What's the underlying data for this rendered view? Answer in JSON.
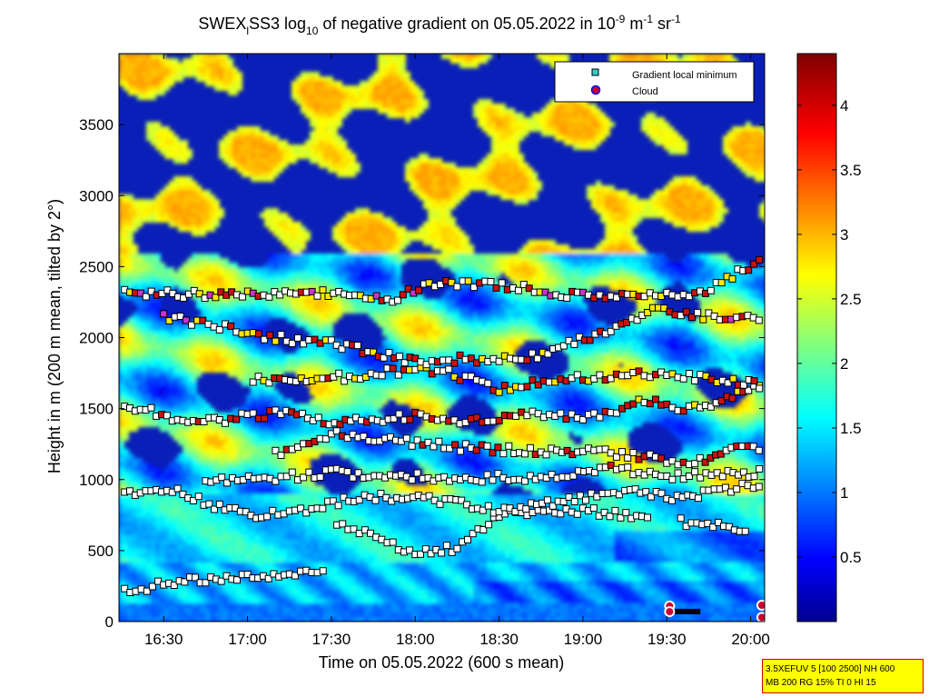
{
  "chart_data": {
    "type": "heatmap",
    "title": {
      "part1": "SWEX",
      "sub1": "l",
      "part2": "SS3 log",
      "sub2": "10",
      "part3": " of negative gradient on 05.05.2022 in 10",
      "sup1": "-9",
      "part4": " m",
      "sup2": "-1",
      "part5": " sr",
      "sup3": "-1"
    },
    "xlabel": "Time on 05.05.2022 (600 s mean)",
    "ylabel": "Height in m (200 m mean, tilted by 2°)",
    "x_ticks": [
      "16:30",
      "17:00",
      "17:30",
      "18:00",
      "18:30",
      "19:00",
      "19:30",
      "20:00"
    ],
    "x_tick_minutes": [
      990,
      1020,
      1050,
      1080,
      1110,
      1140,
      1170,
      1200
    ],
    "xlim_minutes": [
      974,
      1205
    ],
    "y_ticks": [
      0,
      500,
      1000,
      1500,
      2000,
      2500,
      3000,
      3500
    ],
    "ylim": [
      0,
      4000
    ],
    "colorbar": {
      "ticks": [
        "0.5",
        "1",
        "1.5",
        "2",
        "2.5",
        "3",
        "3.5",
        "4"
      ],
      "tick_values": [
        0.5,
        1,
        1.5,
        2,
        2.5,
        3,
        3.5,
        4
      ],
      "range": [
        0,
        4.4
      ],
      "colormap": "jet"
    },
    "legend": {
      "placement": "top-right",
      "entries": [
        {
          "label": "Gradient local minimum",
          "marker": "square",
          "color": "#33cccc"
        },
        {
          "label": "Cloud",
          "marker": "circle",
          "color": "#cc0033",
          "edge": "#0000ff"
        }
      ]
    },
    "layers_m": [
      {
        "name": "surface",
        "points": [
          [
            976,
            220
          ],
          [
            990,
            260
          ],
          [
            1005,
            300
          ],
          [
            1020,
            310
          ],
          [
            1035,
            330
          ],
          [
            1049,
            370
          ]
        ]
      },
      {
        "name": "low-a",
        "points": [
          [
            1052,
            700
          ],
          [
            1080,
            480
          ],
          [
            1095,
            520
          ],
          [
            1110,
            760
          ],
          [
            1140,
            780
          ],
          [
            1165,
            740
          ]
        ]
      },
      {
        "name": "low-b",
        "points": [
          [
            1175,
            700
          ],
          [
            1200,
            650
          ]
        ]
      },
      {
        "name": "mid-900",
        "points": [
          [
            976,
            910
          ],
          [
            995,
            920
          ],
          [
            1010,
            800
          ],
          [
            1025,
            750
          ],
          [
            1045,
            800
          ],
          [
            1060,
            880
          ],
          [
            1085,
            870
          ],
          [
            1110,
            780
          ],
          [
            1135,
            850
          ],
          [
            1155,
            930
          ],
          [
            1170,
            870
          ],
          [
            1185,
            900
          ],
          [
            1205,
            980
          ]
        ]
      },
      {
        "name": "mid-1000",
        "points": [
          [
            1005,
            980
          ],
          [
            1030,
            1010
          ],
          [
            1050,
            1050
          ],
          [
            1075,
            1020
          ],
          [
            1100,
            1010
          ],
          [
            1125,
            1020
          ],
          [
            1150,
            1080
          ],
          [
            1170,
            1020
          ],
          [
            1190,
            1040
          ],
          [
            1205,
            1050
          ]
        ]
      },
      {
        "name": "mid-1200",
        "points": [
          [
            1030,
            1180
          ],
          [
            1050,
            1330
          ],
          [
            1075,
            1270
          ],
          [
            1100,
            1220
          ],
          [
            1125,
            1200
          ],
          [
            1140,
            1200
          ],
          [
            1160,
            1170
          ],
          [
            1180,
            1110
          ],
          [
            1195,
            1220
          ],
          [
            1205,
            1200
          ]
        ]
      },
      {
        "name": "mid-1450",
        "points": [
          [
            976,
            1530
          ],
          [
            995,
            1430
          ],
          [
            1010,
            1420
          ],
          [
            1030,
            1470
          ],
          [
            1055,
            1400
          ],
          [
            1080,
            1450
          ],
          [
            1100,
            1400
          ],
          [
            1120,
            1480
          ],
          [
            1140,
            1420
          ],
          [
            1160,
            1550
          ],
          [
            1180,
            1500
          ],
          [
            1205,
            1660
          ]
        ]
      },
      {
        "name": "upper-1700",
        "points": [
          [
            1022,
            1700
          ],
          [
            1045,
            1700
          ],
          [
            1070,
            1760
          ],
          [
            1090,
            1760
          ],
          [
            1110,
            1640
          ],
          [
            1130,
            1700
          ],
          [
            1150,
            1730
          ],
          [
            1170,
            1750
          ],
          [
            1190,
            1700
          ],
          [
            1205,
            1660
          ]
        ]
      },
      {
        "name": "upper-2000",
        "points": [
          [
            990,
            2150
          ],
          [
            1010,
            2080
          ],
          [
            1030,
            2000
          ],
          [
            1050,
            1960
          ],
          [
            1065,
            1900
          ],
          [
            1080,
            1830
          ],
          [
            1100,
            1850
          ],
          [
            1120,
            1850
          ],
          [
            1135,
            1970
          ],
          [
            1150,
            2030
          ],
          [
            1165,
            2200
          ],
          [
            1185,
            2150
          ],
          [
            1205,
            2120
          ]
        ]
      },
      {
        "name": "upper-2300",
        "points": [
          [
            976,
            2310
          ],
          [
            1022,
            2300
          ],
          [
            1045,
            2320
          ],
          [
            1070,
            2260
          ],
          [
            1085,
            2380
          ],
          [
            1115,
            2360
          ],
          [
            1140,
            2290
          ],
          [
            1160,
            2300
          ],
          [
            1180,
            2300
          ],
          [
            1205,
            2550
          ]
        ]
      }
    ],
    "clouds_m": [
      {
        "minute": 1171,
        "height": 110
      },
      {
        "minute": 1171,
        "height": 70
      },
      {
        "minute": 1204,
        "height": 115
      },
      {
        "minute": 1204,
        "height": 30
      }
    ]
  },
  "info_box": {
    "line1": "3.5XEFUV 5 [100 2500] NH 600",
    "line2": "MB 200 RG 15% TI 0 HI 15"
  }
}
